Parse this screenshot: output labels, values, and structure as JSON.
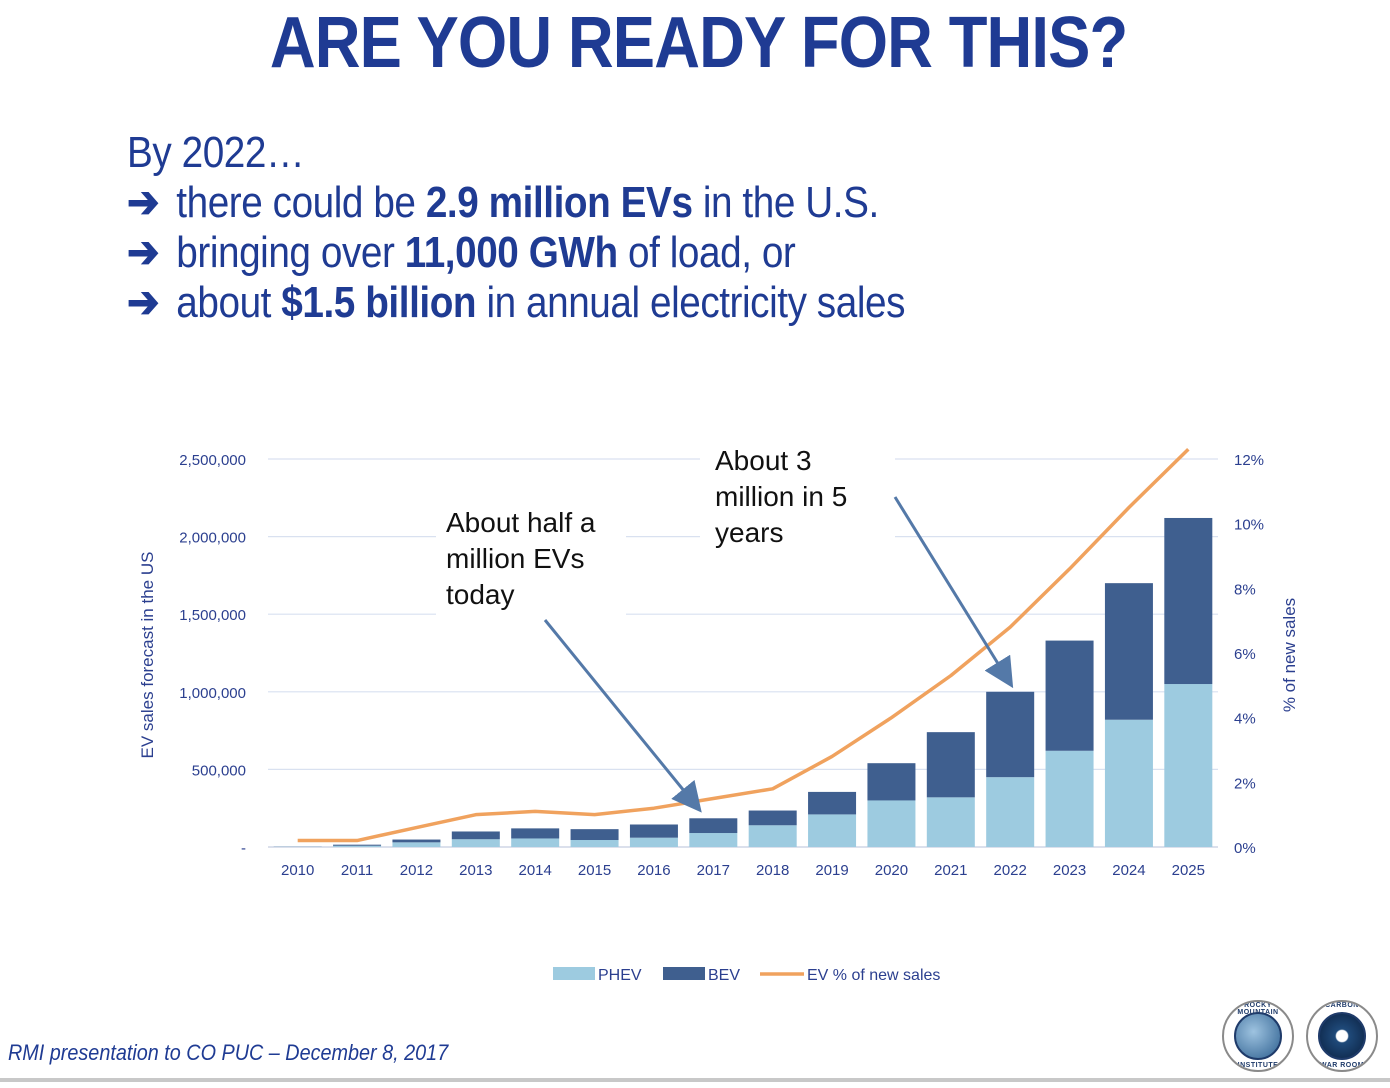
{
  "slide": {
    "title": "ARE YOU READY FOR THIS?",
    "intro": "By 2022…",
    "bullets": [
      {
        "pre": "there could be ",
        "bold": "2.9 million EVs",
        "post": " in the U.S."
      },
      {
        "pre": "bringing over ",
        "bold": "11,000 GWh",
        "post": " of load, or"
      },
      {
        "pre": "about ",
        "bold": "$1.5 billion",
        "post": " in annual electricity sales"
      }
    ],
    "footer": "RMI presentation to CO PUC – December 8, 2017",
    "logos": {
      "left": {
        "top": "ROCKY MOUNTAIN",
        "bottom": "INSTITUTE"
      },
      "right": {
        "top": "CARBON",
        "bottom": "WAR ROOM"
      }
    }
  },
  "colors": {
    "title": "#1f3b93",
    "phev": "#9dcbe0",
    "bev": "#3f5f8f",
    "line": "#f0a25e",
    "axis_text": "#2b3f8f",
    "grid": "#d9e1f0",
    "annotation_arrow": "#5479a8"
  },
  "chart_data": {
    "type": "bar",
    "stacked": true,
    "categories": [
      "2010",
      "2011",
      "2012",
      "2013",
      "2014",
      "2015",
      "2016",
      "2017",
      "2018",
      "2019",
      "2020",
      "2021",
      "2022",
      "2023",
      "2024",
      "2025"
    ],
    "series": [
      {
        "name": "PHEV",
        "kind": "bar",
        "axis": "left",
        "values": [
          2000,
          8000,
          30000,
          50000,
          55000,
          45000,
          60000,
          90000,
          140000,
          210000,
          300000,
          320000,
          450000,
          620000,
          820000,
          1050000
        ]
      },
      {
        "name": "BEV",
        "kind": "bar",
        "axis": "left",
        "values": [
          1000,
          7000,
          18000,
          50000,
          65000,
          70000,
          85000,
          95000,
          95000,
          145000,
          240000,
          420000,
          550000,
          710000,
          880000,
          1070000
        ]
      },
      {
        "name": "EV % of new sales",
        "kind": "line",
        "axis": "right",
        "values": [
          0.2,
          0.2,
          0.6,
          1.0,
          1.1,
          1.0,
          1.2,
          1.5,
          1.8,
          2.8,
          4.0,
          5.3,
          6.8,
          8.6,
          10.5,
          12.3
        ]
      }
    ],
    "left_axis": {
      "label": "EV sales forecast in the US",
      "range": [
        0,
        2500000
      ],
      "ticks": [
        0,
        500000,
        1000000,
        1500000,
        2000000,
        2500000
      ],
      "tick_labels": [
        "-",
        "500,000",
        "1,000,000",
        "1,500,000",
        "2,000,000",
        "2,500,000"
      ]
    },
    "right_axis": {
      "label": "% of new sales",
      "range": [
        0,
        12
      ],
      "ticks": [
        0,
        2,
        4,
        6,
        8,
        10,
        12
      ],
      "tick_labels": [
        "0%",
        "2%",
        "4%",
        "6%",
        "8%",
        "10%",
        "12%"
      ]
    },
    "grid": true,
    "legend": {
      "position": "bottom",
      "entries": [
        "PHEV",
        "BEV",
        "EV % of new sales"
      ]
    },
    "annotations": [
      {
        "lines": [
          "About half a",
          "million EVs",
          "today"
        ],
        "target_category": "2017"
      },
      {
        "lines": [
          "About 3",
          "million in 5",
          "years"
        ],
        "target_category": "2022"
      }
    ]
  }
}
